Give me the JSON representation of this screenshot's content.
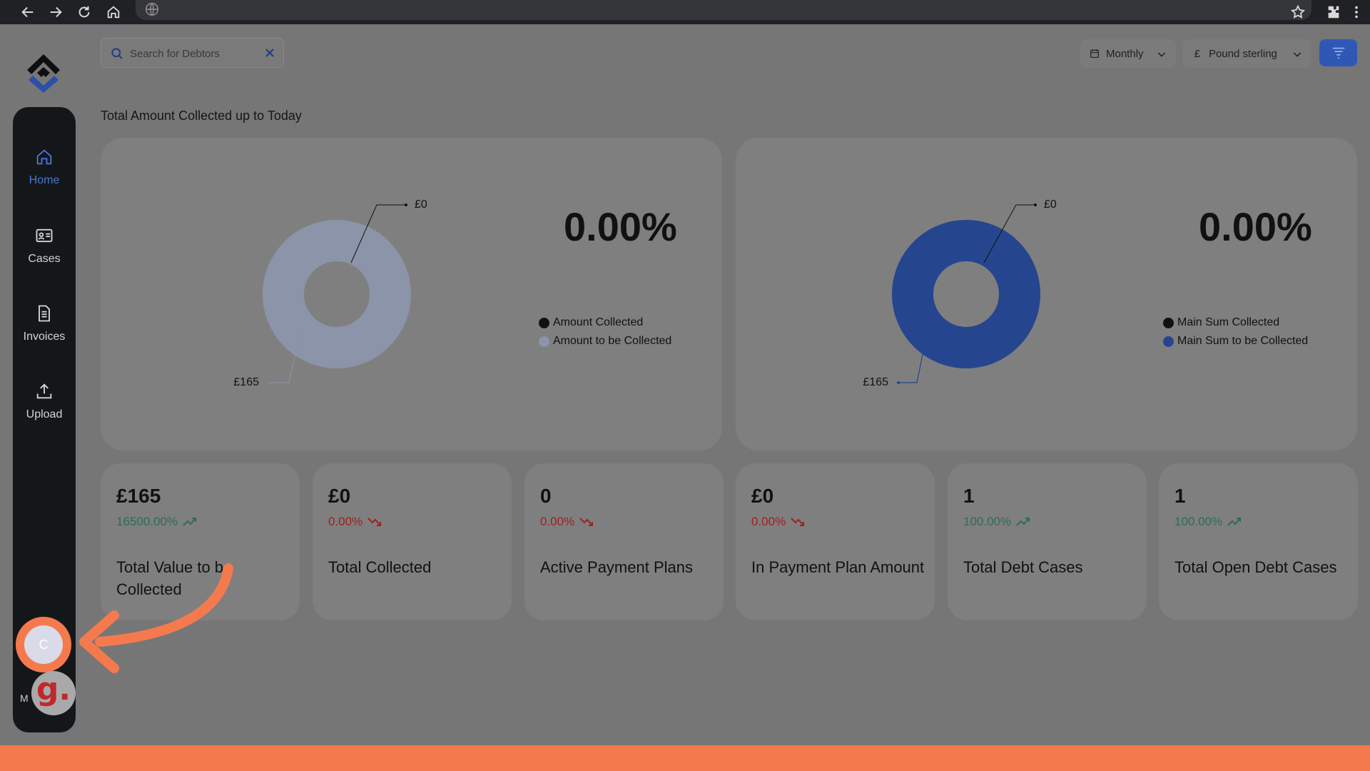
{
  "browser": {
    "icons": [
      "back-icon",
      "forward-icon",
      "reload-icon",
      "home-icon",
      "globe-icon",
      "star-icon",
      "extensions-icon",
      "kebab-menu-icon"
    ]
  },
  "sidebar": {
    "items": [
      {
        "label": "Home",
        "icon": "house-icon",
        "active": true
      },
      {
        "label": "Cases",
        "icon": "id-card-icon",
        "active": false
      },
      {
        "label": "Invoices",
        "icon": "document-icon",
        "active": false
      },
      {
        "label": "Upload",
        "icon": "upload-icon",
        "active": false
      }
    ],
    "avatar_initial": "C",
    "avatar_name": "M",
    "badge_letter": "g."
  },
  "toolbar": {
    "search_placeholder": "Search for Debtors",
    "period": "Monthly",
    "currency_symbol": "£",
    "currency": "Pound sterling"
  },
  "section_title": "Total Amount Collected up to Today",
  "charts": [
    {
      "percent": "0.00%",
      "callout_top": "£0",
      "callout_bottom": "£165",
      "legend": [
        "Amount Collected",
        "Amount to be Collected"
      ],
      "colors": [
        "#111111",
        "#8b94a8"
      ]
    },
    {
      "percent": "0.00%",
      "callout_top": "£0",
      "callout_bottom": "£165",
      "legend": [
        "Main Sum Collected",
        "Main Sum to be Collected"
      ],
      "colors": [
        "#111111",
        "#25468e"
      ]
    }
  ],
  "stats": [
    {
      "value": "£165",
      "change": "16500.00%",
      "trend": "up",
      "label": "Total Value to be Collected"
    },
    {
      "value": "£0",
      "change": "0.00%",
      "trend": "down",
      "label": "Total Collected"
    },
    {
      "value": "0",
      "change": "0.00%",
      "trend": "down",
      "label": "Active Payment Plans"
    },
    {
      "value": "£0",
      "change": "0.00%",
      "trend": "down",
      "label": "In Payment Plan Amount"
    },
    {
      "value": "1",
      "change": "100.00%",
      "trend": "up",
      "label": "Total Debt Cases"
    },
    {
      "value": "1",
      "change": "100.00%",
      "trend": "up",
      "label": "Total Open Debt Cases"
    }
  ],
  "colors": {
    "accent": "#2f58b6",
    "annotation": "#f47a4e",
    "trend_up": "#2e6b58",
    "trend_down": "#a11f1f"
  }
}
